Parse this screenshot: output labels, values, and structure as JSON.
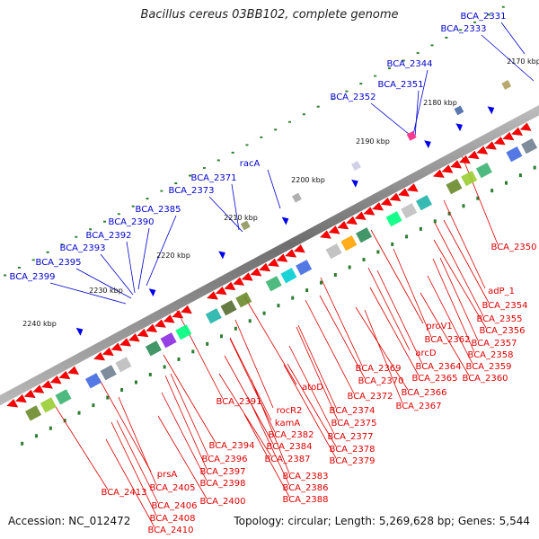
{
  "title": "Bacillus cereus 03BB102, complete genome",
  "accession": "Accession: NC_012472",
  "topology": "Topology: circular; Length: 5,269,628 bp; Genes: 5,544",
  "colors": {
    "forward_label": "#0000cc",
    "reverse_label": "#dd0000",
    "backbone": "#888888",
    "tick": "#2e7d32"
  },
  "kbp_ticks": [
    "2170 kbp",
    "2180 kbp",
    "2190 kbp",
    "2200 kbp",
    "2210 kbp",
    "2220 kbp",
    "2230 kbp",
    "2240 kbp"
  ],
  "blue_labels": [
    "BCA_2331",
    "BCA_2333",
    "BCA_2344",
    "BCA_2351",
    "BCA_2352",
    "racA",
    "BCA_2371",
    "BCA_2373",
    "BCA_2385",
    "BCA_2390",
    "BCA_2392",
    "BCA_2393",
    "BCA_2395",
    "BCA_2399"
  ],
  "red_labels": [
    "BCA_2350",
    "adP_1",
    "BCA_2354",
    "BCA_2355",
    "BCA_2356",
    "BCA_2357",
    "BCA_2358",
    "BCA_2359",
    "BCA_2360",
    "proV1",
    "BCA_2362",
    "arcD",
    "BCA_2364",
    "BCA_2365",
    "BCA_2366",
    "BCA_2367",
    "BCA_2369",
    "BCA_2370",
    "BCA_2372",
    "atoD",
    "BCA_2374",
    "BCA_2375",
    "BCA_2377",
    "BCA_2378",
    "BCA_2379",
    "rocR2",
    "kamA",
    "BCA_2382",
    "BCA_2384",
    "BCA_2387",
    "BCA_2383",
    "BCA_2386",
    "BCA_2388",
    "BCA_2391",
    "BCA_2394",
    "BCA_2396",
    "BCA_2397",
    "BCA_2398",
    "BCA_2400",
    "prsA",
    "BCA_2405",
    "BCA_2406",
    "BCA_2408",
    "BCA_2410",
    "BCA_2413"
  ]
}
